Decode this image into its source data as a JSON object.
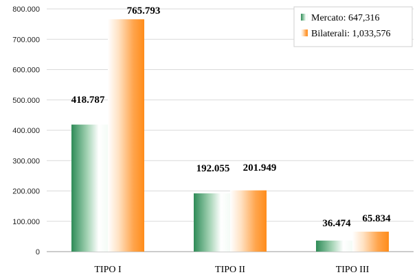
{
  "chart_data": {
    "type": "bar",
    "categories": [
      "TIPO I",
      "TIPO II",
      "TIPO III"
    ],
    "series": [
      {
        "name": "Mercato: 647,316",
        "values": [
          418787,
          192055,
          36474
        ],
        "labels": [
          "418.787",
          "192.055",
          "36.474"
        ],
        "color": "#2e8b57"
      },
      {
        "name": "Bilaterali: 1,033,576",
        "values": [
          765793,
          201949,
          65834
        ],
        "labels": [
          "765.793",
          "201.949",
          "65.834"
        ],
        "color": "#ff8c1a"
      }
    ],
    "y_ticks": [
      "0",
      "100.000",
      "200.000",
      "300.000",
      "400.000",
      "500.000",
      "600.000",
      "700.000",
      "800.000"
    ],
    "ylim": [
      0,
      800000
    ],
    "grid": true,
    "legend_position": "top-right"
  }
}
